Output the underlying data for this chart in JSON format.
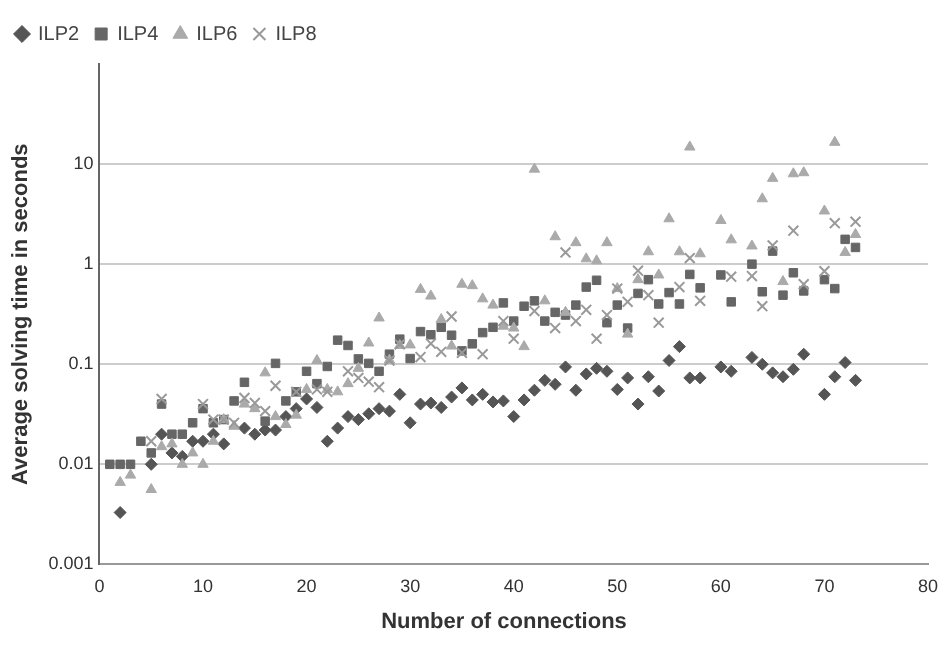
{
  "chart_data": {
    "type": "scatter",
    "xlabel": "Number of connections",
    "ylabel": "Average solving time in seconds",
    "log": "y",
    "grid": "y",
    "legend": "top left",
    "xlim": [
      0,
      80
    ],
    "xticks": [
      0,
      10,
      20,
      30,
      40,
      50,
      60,
      70,
      80
    ],
    "ylim": [
      0.001,
      100
    ],
    "yticks": [
      0.001,
      0.01,
      0.1,
      1,
      10
    ],
    "series": [
      {
        "name": "ILP2",
        "color": "#555555",
        "marker": "diamond",
        "x": [
          2,
          5,
          6,
          7,
          8,
          9,
          10,
          11,
          12,
          14,
          15,
          16,
          17,
          18,
          19,
          20,
          21,
          22,
          23,
          24,
          25,
          26,
          27,
          28,
          29,
          30,
          31,
          32,
          33,
          34,
          35,
          36,
          37,
          38,
          39,
          40,
          41,
          42,
          43,
          44,
          45,
          46,
          47,
          48,
          49,
          50,
          51,
          52,
          53,
          54,
          55,
          56,
          57,
          58,
          60,
          61,
          63,
          64,
          65,
          66,
          67,
          68,
          70,
          71,
          72,
          73
        ],
        "values": [
          0.0033,
          0.01,
          0.02,
          0.013,
          0.012,
          0.017,
          0.017,
          0.02,
          0.016,
          0.023,
          0.02,
          0.022,
          0.022,
          0.03,
          0.036,
          0.045,
          0.037,
          0.017,
          0.023,
          0.03,
          0.028,
          0.032,
          0.036,
          0.034,
          0.05,
          0.026,
          0.04,
          0.041,
          0.037,
          0.047,
          0.058,
          0.044,
          0.05,
          0.042,
          0.043,
          0.03,
          0.044,
          0.055,
          0.069,
          0.063,
          0.094,
          0.055,
          0.08,
          0.091,
          0.085,
          0.056,
          0.073,
          0.04,
          0.075,
          0.054,
          0.109,
          0.15,
          0.073,
          0.073,
          0.094,
          0.085,
          0.117,
          0.1,
          0.082,
          0.075,
          0.089,
          0.126,
          0.05,
          0.075,
          0.104,
          0.069
        ]
      },
      {
        "name": "ILP4",
        "color": "#666666",
        "marker": "square",
        "x": [
          1,
          2,
          3,
          4,
          5,
          6,
          7,
          8,
          9,
          10,
          11,
          12,
          13,
          14,
          16,
          17,
          18,
          19,
          20,
          21,
          22,
          23,
          24,
          25,
          26,
          27,
          28,
          29,
          30,
          31,
          32,
          33,
          34,
          35,
          36,
          37,
          38,
          39,
          40,
          41,
          42,
          43,
          44,
          45,
          46,
          47,
          48,
          49,
          50,
          51,
          52,
          53,
          54,
          55,
          56,
          57,
          58,
          60,
          61,
          63,
          64,
          65,
          66,
          67,
          68,
          70,
          71,
          72,
          73
        ],
        "values": [
          0.01,
          0.01,
          0.01,
          0.017,
          0.013,
          0.04,
          0.02,
          0.02,
          0.026,
          0.036,
          0.026,
          0.028,
          0.043,
          0.066,
          0.027,
          0.102,
          0.043,
          0.053,
          0.085,
          0.064,
          0.095,
          0.174,
          0.154,
          0.113,
          0.102,
          0.085,
          0.126,
          0.178,
          0.114,
          0.212,
          0.197,
          0.234,
          0.195,
          0.136,
          0.16,
          0.207,
          0.234,
          0.41,
          0.27,
          0.38,
          0.43,
          0.27,
          0.33,
          0.31,
          0.39,
          0.59,
          0.69,
          0.26,
          0.39,
          0.23,
          0.51,
          0.7,
          0.4,
          0.52,
          0.4,
          0.79,
          0.58,
          0.78,
          0.42,
          1,
          0.53,
          1.35,
          0.49,
          0.82,
          0.54,
          0.7,
          0.57,
          1.77,
          1.47
        ]
      },
      {
        "name": "ILP6",
        "color": "#aaaaaa",
        "marker": "triangle",
        "x": [
          2,
          3,
          5,
          6,
          7,
          8,
          9,
          10,
          11,
          12,
          13,
          14,
          15,
          16,
          17,
          18,
          19,
          20,
          21,
          22,
          23,
          24,
          25,
          26,
          27,
          28,
          29,
          30,
          31,
          32,
          33,
          34,
          35,
          36,
          37,
          38,
          39,
          40,
          41,
          42,
          43,
          44,
          45,
          46,
          47,
          48,
          49,
          50,
          51,
          52,
          53,
          54,
          55,
          56,
          57,
          58,
          60,
          61,
          63,
          64,
          65,
          66,
          67,
          68,
          70,
          71,
          72,
          73
        ],
        "values": [
          0.0066,
          0.0078,
          0.0056,
          0.015,
          0.016,
          0.01,
          0.013,
          0.01,
          0.017,
          0.028,
          0.024,
          0.04,
          0.036,
          0.082,
          0.03,
          0.025,
          0.031,
          0.056,
          0.109,
          0.056,
          0.053,
          0.064,
          0.091,
          0.163,
          0.29,
          0.11,
          0.154,
          0.156,
          0.56,
          0.48,
          0.28,
          0.152,
          0.63,
          0.61,
          0.45,
          0.39,
          0.24,
          0.23,
          0.15,
          8.9,
          0.43,
          1.88,
          0.33,
          1.64,
          1.13,
          1.08,
          1.64,
          0.57,
          0.2,
          0.7,
          1.33,
          0.78,
          2.84,
          1.33,
          14.8,
          1.27,
          2.73,
          1.75,
          1.52,
          4.5,
          7.2,
          0.67,
          8,
          8.2,
          3.4,
          16.5,
          1.31,
          1.98
        ]
      },
      {
        "name": "ILP8",
        "color": "#999999",
        "marker": "cross",
        "x": [
          5,
          6,
          10,
          11,
          12,
          13,
          14,
          15,
          16,
          17,
          19,
          21,
          22,
          24,
          25,
          26,
          27,
          28,
          29,
          31,
          32,
          33,
          34,
          35,
          37,
          39,
          40,
          42,
          44,
          45,
          46,
          47,
          48,
          49,
          50,
          51,
          52,
          53,
          54,
          56,
          57,
          58,
          61,
          63,
          64,
          65,
          67,
          68,
          70,
          71,
          73
        ],
        "values": [
          0.017,
          0.045,
          0.04,
          0.028,
          0.028,
          0.026,
          0.046,
          0.041,
          0.034,
          0.061,
          0.053,
          0.056,
          0.053,
          0.085,
          0.073,
          0.067,
          0.059,
          0.109,
          0.158,
          0.118,
          0.161,
          0.133,
          0.3,
          0.13,
          0.126,
          0.27,
          0.18,
          0.34,
          0.23,
          1.31,
          0.27,
          0.35,
          0.18,
          0.31,
          0.57,
          0.42,
          0.86,
          0.49,
          0.26,
          0.59,
          1.15,
          0.43,
          0.75,
          0.76,
          0.38,
          1.54,
          2.16,
          0.63,
          0.85,
          2.57,
          2.66
        ]
      }
    ]
  }
}
